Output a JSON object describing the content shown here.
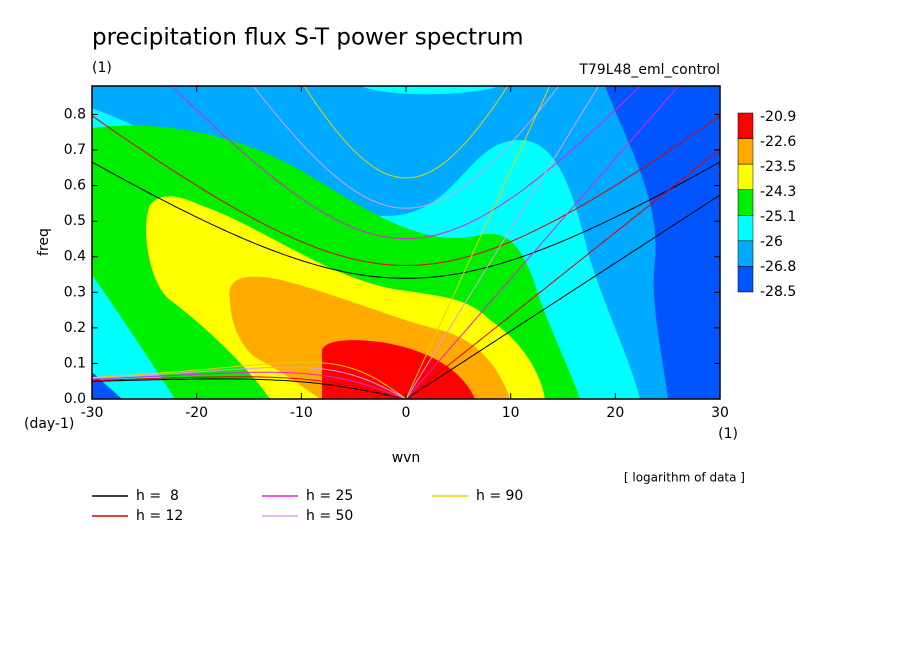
{
  "chart_data": {
    "type": "contour",
    "title": "precipitation flux S-T power spectrum",
    "subtitle_left": "(1)",
    "subtitle_right": "T79L48_eml_control",
    "x_label": "wvn",
    "y_label": "freq",
    "y_unit": "(day-1)",
    "x_unit": "(1)",
    "note": "[ logarithm of data ]",
    "xlim": [
      -30,
      30
    ],
    "xticks": [
      -30,
      -20,
      -10,
      0,
      10,
      20,
      30
    ],
    "ylim": [
      0,
      0.88
    ],
    "yticks": [
      {
        "value": 0,
        "label": "0.0"
      },
      0.1,
      0.2,
      0.3,
      0.4,
      0.5,
      0.6,
      0.7,
      0.8
    ],
    "levels": [
      -20.9,
      -22.6,
      -23.5,
      -24.3,
      -25.1,
      -26,
      -26.8,
      -28.5
    ],
    "level_colors": [
      "#ff0000",
      "#ffaa00",
      "#ffff00",
      "#00ee00",
      "#00ffff",
      "#00aaff",
      "#0055ff"
    ],
    "series": [
      {
        "name": "h =  8",
        "h": 8,
        "color": "#000000"
      },
      {
        "name": "h = 12",
        "h": 12,
        "color": "#e00000"
      },
      {
        "name": "h = 25",
        "h": 25,
        "color": "#e020e0"
      },
      {
        "name": "h = 50",
        "h": 50,
        "color": "#d8a0e8"
      },
      {
        "name": "h = 90",
        "h": 90,
        "color": "#e8d000"
      }
    ]
  }
}
